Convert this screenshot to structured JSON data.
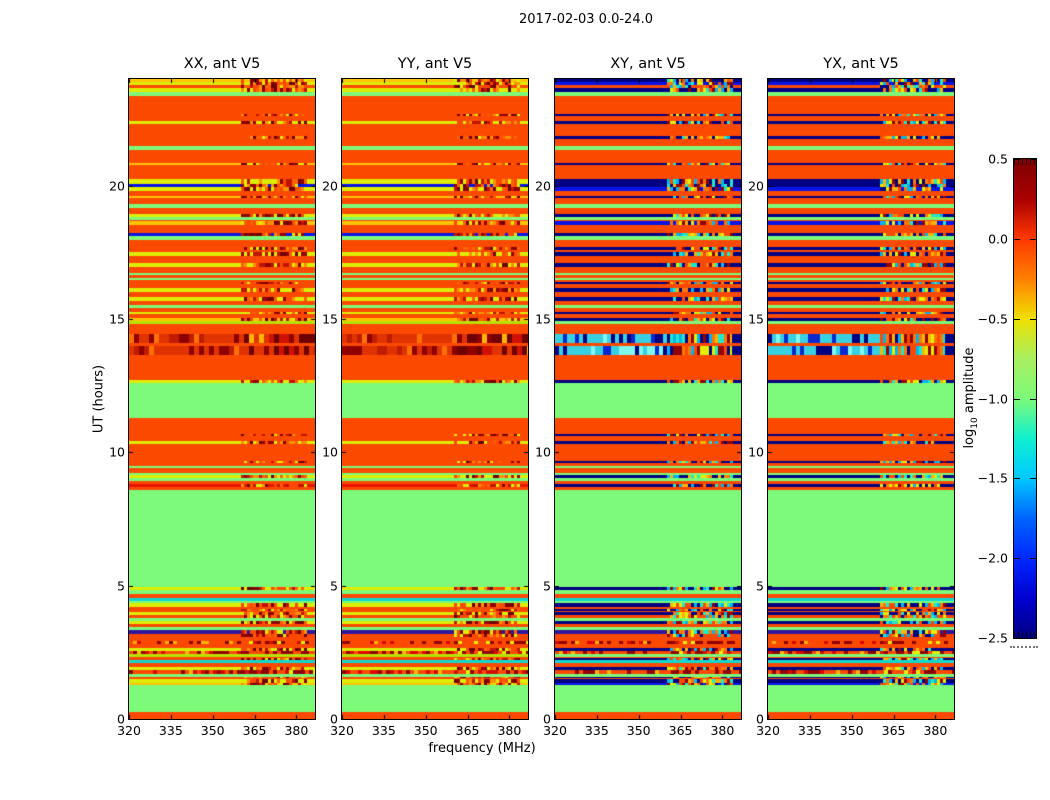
{
  "title": "2017-02-03 0.0-24.0",
  "chart_data": {
    "type": "heatmap",
    "title": "2017-02-03 0.0-24.0",
    "xlabel": "frequency (MHz)",
    "ylabel": "UT (hours)",
    "xlim": [
      320,
      386.7
    ],
    "ylim": [
      0,
      24
    ],
    "x_ticks": {
      "values": [
        320,
        335,
        350,
        365,
        380
      ],
      "labels": [
        "320",
        "335",
        "350",
        "365",
        "380"
      ],
      "fracs": [
        0,
        0.225,
        0.45,
        0.675,
        0.9
      ]
    },
    "y_ticks": {
      "values": [
        0,
        5,
        10,
        15,
        20
      ],
      "labels": [
        "0",
        "5",
        "10",
        "15",
        "20"
      ]
    },
    "panels": [
      {
        "label": "XX, ant V5",
        "family": "p"
      },
      {
        "label": "YY, ant V5",
        "family": "p"
      },
      {
        "label": "XY, ant V5",
        "family": "c"
      },
      {
        "label": "YX, ant V5",
        "family": "c"
      }
    ],
    "colorbar": {
      "label_pre": "log",
      "label_sub": "10",
      "label_post": " amplitude",
      "ticks": [
        0.5,
        0.0,
        -0.5,
        -1.0,
        -1.5,
        -2.0,
        -2.5
      ],
      "tick_labels": [
        "0.5",
        "0.0",
        "−0.5",
        "−1.0",
        "−1.5",
        "−2.0",
        "−2.5"
      ],
      "vmin": -2.5,
      "vmax": 0.5,
      "cmap": "jet",
      "stops_top_to_bottom": [
        "#7f0000",
        "#aa0000",
        "#ff3800",
        "#ff8000",
        "#f0e000",
        "#a8f060",
        "#7dfa79",
        "#10f0d0",
        "#00c8ff",
        "#0064ff",
        "#0028ff",
        "#0000d0",
        "#000082"
      ]
    },
    "palette": {
      "bg": "#fb4a00",
      "green": "#7dfa79",
      "yellow": "#dded00",
      "gold": "#ffc400",
      "olive": "#b8e000",
      "red": "#e81400",
      "darkred": "#8f0000",
      "blue": "#0a14e6",
      "navy": "#000082",
      "teal": "#10d8d0",
      "cyan": "#35d0e0",
      "purple": "#31159e"
    },
    "hf_band": [
      0.6,
      0.95
    ],
    "speckle": {
      "p": [
        "#8f0000",
        "#c01400",
        "#ff9000",
        "#dded00",
        "#fb4a00",
        "#6e0000",
        "#ff6000"
      ],
      "c": [
        "#ffb400",
        "#e2ef00",
        "#1ee8c8",
        "#000082",
        "#fb4a00",
        "#00b4f0",
        "#8f0000",
        "#ff7800"
      ]
    },
    "stripes": [
      [
        23.9,
        24.0,
        "gold",
        "navy",
        "hf"
      ],
      [
        23.78,
        23.9,
        "yellow",
        "blue",
        "hf"
      ],
      [
        23.66,
        23.78,
        "bg",
        "bg",
        "hf"
      ],
      [
        23.52,
        23.66,
        "yellow",
        "navy",
        "hf"
      ],
      [
        23.38,
        23.52,
        "green",
        "green",
        ""
      ],
      [
        22.6,
        22.7,
        "bg",
        "navy",
        "hf"
      ],
      [
        22.3,
        22.42,
        "yellow",
        "navy",
        "hf"
      ],
      [
        21.75,
        21.85,
        "bg",
        "navy",
        "hf"
      ],
      [
        21.32,
        21.5,
        "green",
        "green",
        ""
      ],
      [
        20.78,
        20.86,
        "gold",
        "navy",
        "hf"
      ],
      [
        20.05,
        20.25,
        "yellow",
        "navy",
        "hf"
      ],
      [
        19.94,
        20.05,
        "blue",
        "navy",
        "hf"
      ],
      [
        19.8,
        19.94,
        "yellow",
        "blue",
        "hf"
      ],
      [
        19.52,
        19.62,
        "gold",
        "navy",
        "hf"
      ],
      [
        19.18,
        19.3,
        "green",
        "green",
        ""
      ],
      [
        18.82,
        18.95,
        "yellow",
        "navy",
        "hf"
      ],
      [
        18.7,
        18.82,
        "green",
        "green",
        ""
      ],
      [
        18.52,
        18.68,
        "gold",
        "blue",
        "hf"
      ],
      [
        18.1,
        18.22,
        "blue",
        "navy",
        "hf"
      ],
      [
        17.98,
        18.1,
        "green",
        "green",
        ""
      ],
      [
        17.6,
        17.7,
        "bg",
        "navy",
        "hf"
      ],
      [
        17.35,
        17.5,
        "yellow",
        "navy",
        "hf"
      ],
      [
        16.95,
        17.1,
        "yellow",
        "navy",
        "hf"
      ],
      [
        16.66,
        16.74,
        "green",
        "green",
        ""
      ],
      [
        16.46,
        16.54,
        "green",
        "green",
        ""
      ],
      [
        16.3,
        16.38,
        "bg",
        "navy",
        "hf"
      ],
      [
        16.03,
        16.18,
        "yellow",
        "navy",
        "hf"
      ],
      [
        15.68,
        15.84,
        "yellow",
        "navy",
        "hf"
      ],
      [
        15.43,
        15.53,
        "green",
        "green",
        ""
      ],
      [
        15.18,
        15.28,
        "yellow",
        "navy",
        "hf"
      ],
      [
        14.93,
        15.04,
        "gold",
        "navy",
        "hf"
      ],
      [
        14.82,
        14.93,
        "olive",
        "green",
        ""
      ],
      [
        14.1,
        14.42,
        "bg",
        "bg",
        "beads"
      ],
      [
        13.65,
        13.97,
        "bg",
        "bg",
        "beads"
      ],
      [
        12.6,
        12.72,
        "yellow",
        "navy",
        "hf"
      ],
      [
        11.28,
        12.6,
        "green",
        "green",
        ""
      ],
      [
        10.6,
        10.68,
        "bg",
        "navy",
        "hf"
      ],
      [
        10.3,
        10.42,
        "yellow",
        "navy",
        "hf"
      ],
      [
        9.6,
        9.68,
        "bg",
        "navy",
        "hf"
      ],
      [
        9.4,
        9.5,
        "green",
        "green",
        ""
      ],
      [
        9.16,
        9.24,
        "green",
        "green",
        ""
      ],
      [
        9.02,
        9.16,
        "yellow",
        "navy",
        "hf"
      ],
      [
        8.92,
        9.02,
        "green",
        "green",
        ""
      ],
      [
        8.7,
        8.8,
        "red",
        "navy",
        "hf"
      ],
      [
        4.95,
        8.6,
        "green",
        "green",
        ""
      ],
      [
        4.82,
        4.95,
        "yellow",
        "navy",
        "hf"
      ],
      [
        4.7,
        4.82,
        "green",
        "green",
        ""
      ],
      [
        4.44,
        4.54,
        "teal",
        "teal",
        ""
      ],
      [
        4.34,
        4.44,
        "green",
        "green",
        ""
      ],
      [
        4.2,
        4.34,
        "yellow",
        "navy",
        "hf"
      ],
      [
        4.06,
        4.14,
        "bg",
        "navy",
        "hf"
      ],
      [
        3.9,
        4.0,
        "yellow",
        "navy",
        "hf"
      ],
      [
        3.78,
        3.9,
        "bg",
        "bg",
        "hf"
      ],
      [
        3.68,
        3.78,
        "green",
        "green",
        ""
      ],
      [
        3.56,
        3.68,
        "yellow",
        "navy",
        "hf"
      ],
      [
        3.34,
        3.44,
        "green",
        "green",
        ""
      ],
      [
        3.2,
        3.34,
        "purple",
        "purple",
        "hf"
      ],
      [
        3.08,
        3.2,
        "bg",
        "bg",
        "hf"
      ],
      [
        2.8,
        2.94,
        "bg",
        "bg",
        "rbeads"
      ],
      [
        2.56,
        2.68,
        "yellow",
        "navy",
        "hf"
      ],
      [
        2.42,
        2.56,
        "bg",
        "bg",
        "rbeads"
      ],
      [
        2.32,
        2.42,
        "olive",
        "green",
        ""
      ],
      [
        2.22,
        2.3,
        "bg",
        "navy",
        "hf"
      ],
      [
        2.1,
        2.2,
        "teal",
        "teal",
        ""
      ],
      [
        1.84,
        1.94,
        "yellow",
        "navy",
        "hf"
      ],
      [
        1.68,
        1.84,
        "bg",
        "bg",
        "rbeads"
      ],
      [
        1.58,
        1.68,
        "green",
        "green",
        ""
      ],
      [
        1.52,
        1.58,
        "bg",
        "navy",
        "hf"
      ],
      [
        1.36,
        1.5,
        "yellow",
        "navy",
        "hf"
      ],
      [
        1.26,
        1.36,
        "gold",
        "blue",
        "hf"
      ],
      [
        0.26,
        1.26,
        "green",
        "green",
        ""
      ]
    ]
  }
}
